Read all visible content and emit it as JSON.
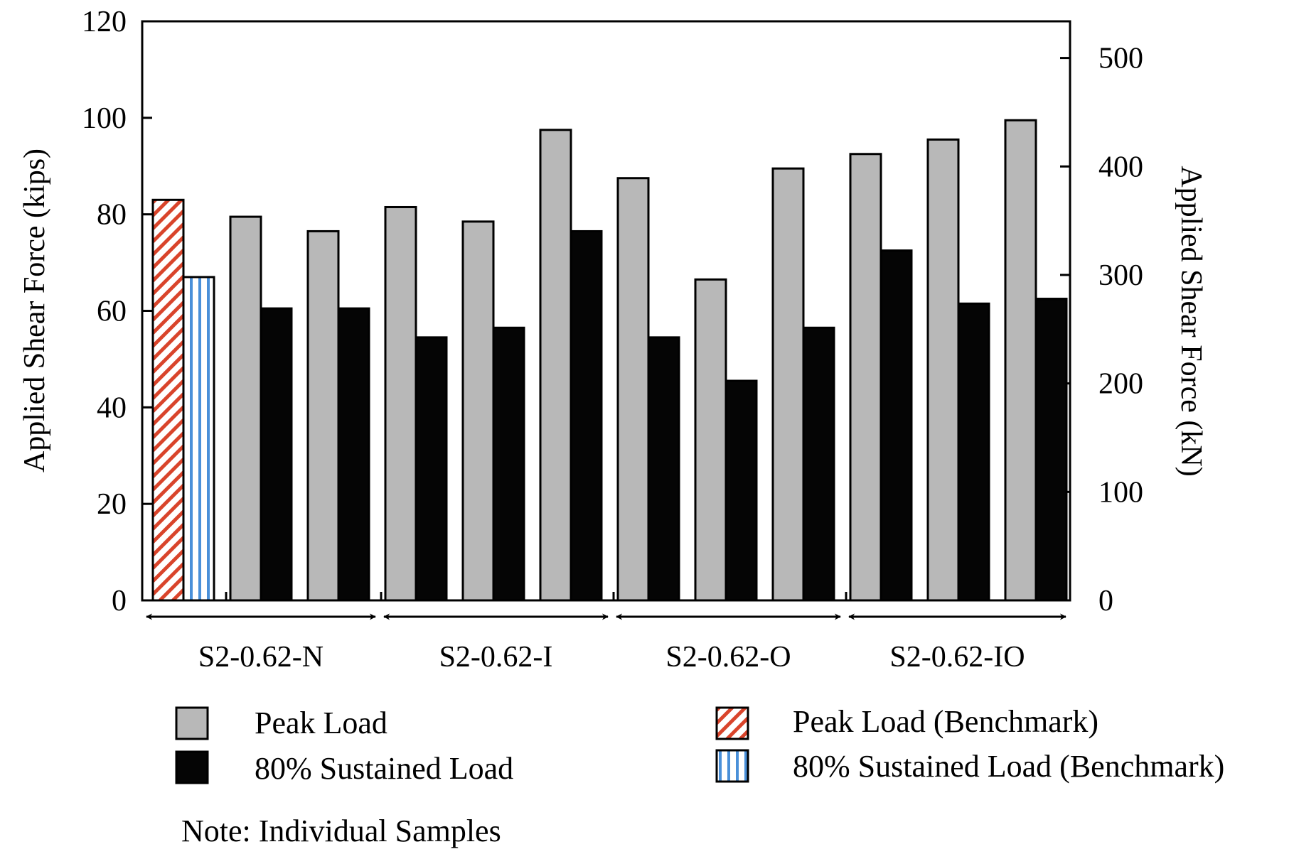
{
  "chart_data": {
    "type": "bar",
    "ylabel_left": "Applied Shear Force (kips)",
    "ylabel_right": "Applied Shear Force (kN)",
    "ylim_left": [
      0,
      120
    ],
    "yticks_left": [
      "0",
      "20",
      "40",
      "60",
      "80",
      "100",
      "120"
    ],
    "ylim_right_kN": [
      0,
      533.8
    ],
    "yticks_right": [
      "0",
      "100",
      "200",
      "300",
      "400",
      "500"
    ],
    "benchmark": {
      "peak_load": 83,
      "sustained_80": 67
    },
    "groups": [
      {
        "label": "S2-0.62-N",
        "samples": [
          {
            "peak": 79.5,
            "sustained": 60.5
          },
          {
            "peak": 76.5,
            "sustained": 60.5
          }
        ]
      },
      {
        "label": "S2-0.62-I",
        "samples": [
          {
            "peak": 81.5,
            "sustained": 54.5
          },
          {
            "peak": 78.5,
            "sustained": 56.5
          },
          {
            "peak": 97.5,
            "sustained": 76.5
          }
        ]
      },
      {
        "label": "S2-0.62-O",
        "samples": [
          {
            "peak": 87.5,
            "sustained": 54.5
          },
          {
            "peak": 66.5,
            "sustained": 45.5
          },
          {
            "peak": 89.5,
            "sustained": 56.5
          }
        ]
      },
      {
        "label": "S2-0.62-IO",
        "samples": [
          {
            "peak": 92.5,
            "sustained": 72.5
          },
          {
            "peak": 95.5,
            "sustained": 61.5
          },
          {
            "peak": 99.5,
            "sustained": 62.5
          }
        ]
      }
    ],
    "legend": {
      "peak": "Peak Load",
      "sustained": "80% Sustained Load",
      "peak_benchmark": "Peak Load (Benchmark)",
      "sustained_benchmark": "80% Sustained Load (Benchmark)"
    },
    "note": "Note: Individual Samples",
    "colors": {
      "peak_fill": "#b8b8b8",
      "sustained_fill": "#050505",
      "benchmark_peak_stripe": "#d9442b",
      "benchmark_sustained_stripe": "#4a90d9"
    }
  }
}
